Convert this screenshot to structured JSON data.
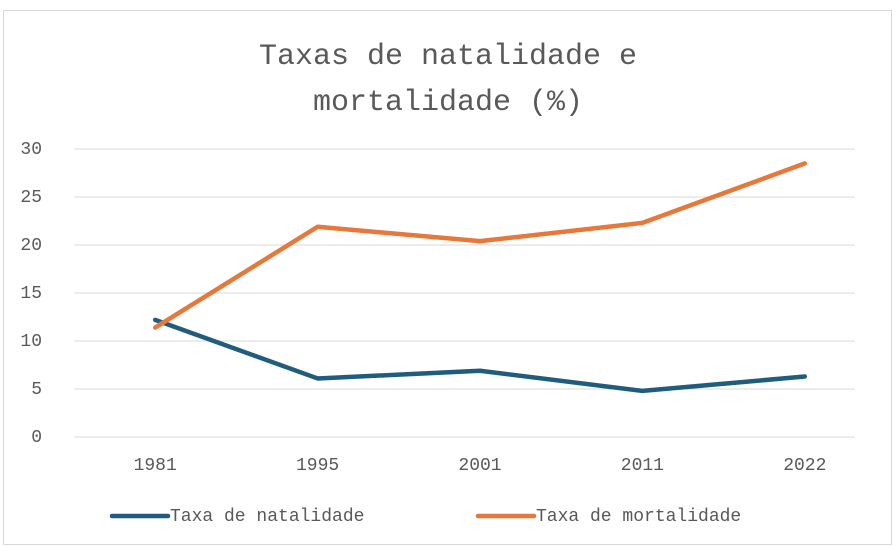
{
  "chart_data": {
    "type": "line",
    "title": "Taxas de natalidade e mortalidade (%)",
    "categories": [
      "1981",
      "1995",
      "2001",
      "2011",
      "2022"
    ],
    "series": [
      {
        "name": "Taxa de natalidade",
        "color": "#1f5c7d",
        "values": [
          12.2,
          6.1,
          6.9,
          4.8,
          6.3
        ]
      },
      {
        "name": "Taxa de mortalidade",
        "color": "#e8773a",
        "values": [
          11.4,
          21.9,
          20.4,
          22.3,
          28.5
        ]
      }
    ],
    "ylim": [
      0,
      30
    ],
    "yticks": [
      0,
      5,
      10,
      15,
      20,
      25,
      30
    ],
    "grid": true,
    "legend": "bottom"
  }
}
